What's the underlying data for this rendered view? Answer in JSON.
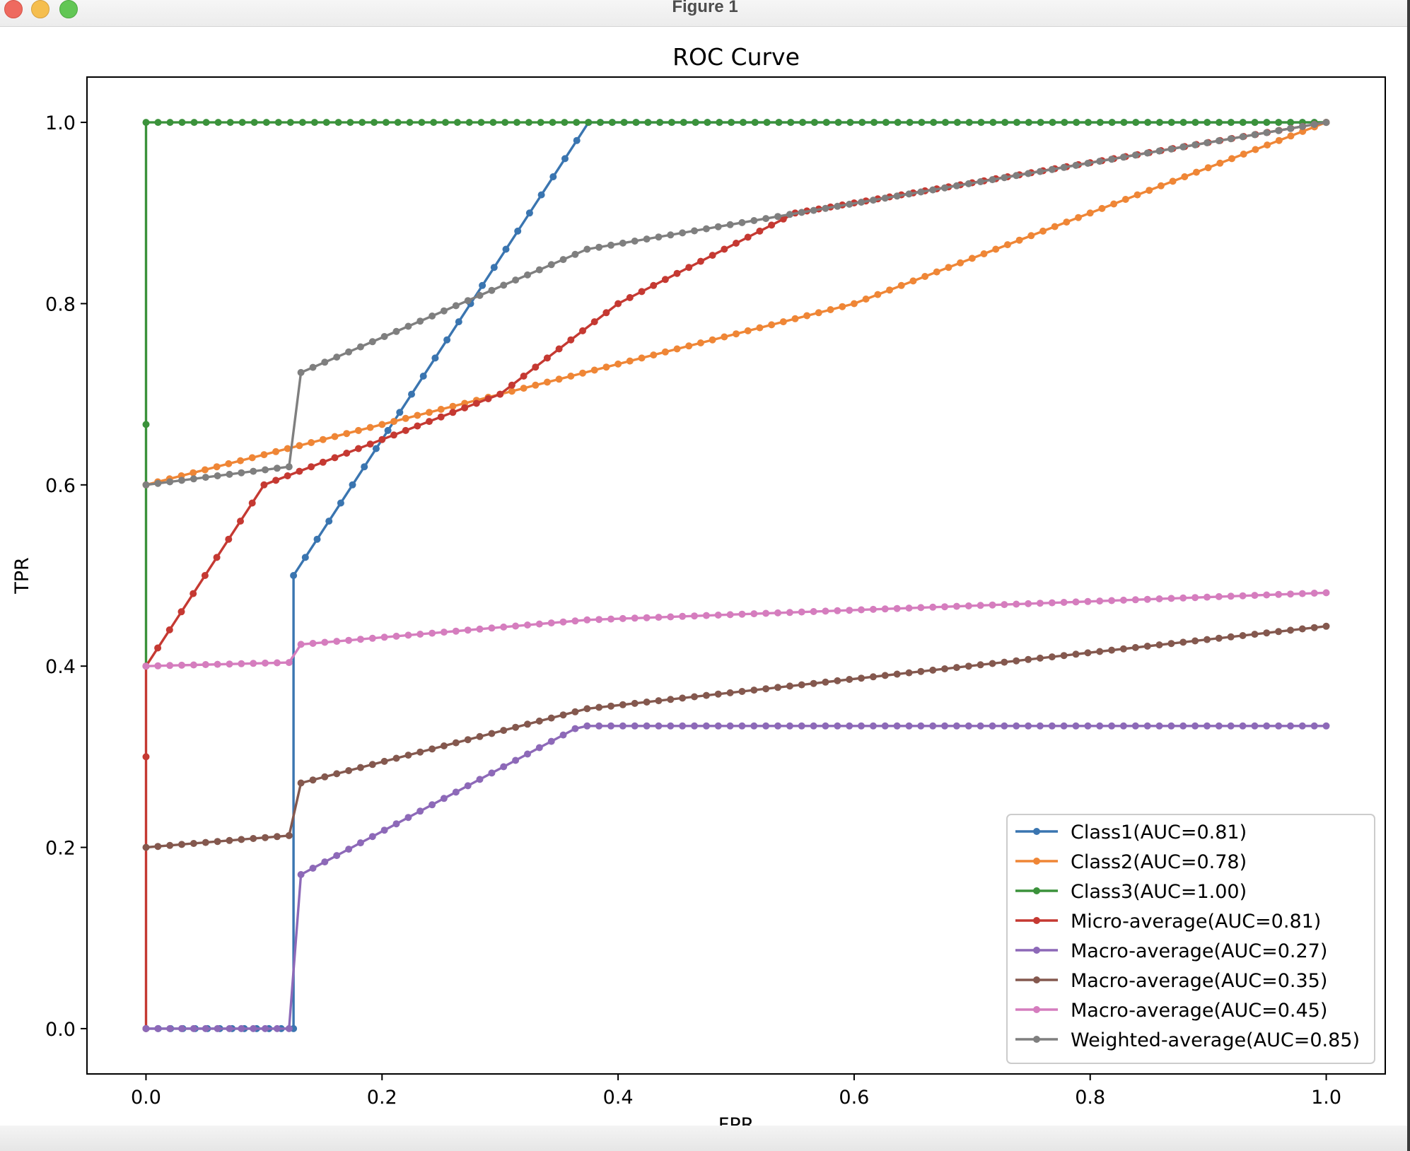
{
  "window": {
    "title": "Figure 1"
  },
  "chart_data": {
    "type": "line",
    "title": "ROC Curve",
    "xlabel": "FPR",
    "ylabel": "TPR",
    "xlim": [
      -0.05,
      1.05
    ],
    "ylim": [
      -0.05,
      1.05
    ],
    "xticks": [
      0.0,
      0.2,
      0.4,
      0.6,
      0.8,
      1.0
    ],
    "yticks": [
      0.0,
      0.2,
      0.4,
      0.6,
      0.8,
      1.0
    ],
    "xtick_labels": [
      "0.0",
      "0.2",
      "0.4",
      "0.6",
      "0.8",
      "1.0"
    ],
    "ytick_labels": [
      "0.0",
      "0.2",
      "0.4",
      "0.6",
      "0.8",
      "1.0"
    ],
    "grid": false,
    "legend_position": "lower-right",
    "series": [
      {
        "name": "Class1(AUC=0.81)",
        "color": "#3a75b0",
        "x": [
          0.0,
          0.125,
          0.125,
          0.375,
          1.0
        ],
        "y": [
          0.0,
          0.0,
          0.5,
          1.0,
          1.0
        ]
      },
      {
        "name": "Class2(AUC=0.78)",
        "color": "#ef8636",
        "x": [
          0.0,
          0.3,
          0.6,
          1.0
        ],
        "y": [
          0.6,
          0.7,
          0.8,
          1.0
        ]
      },
      {
        "name": "Class3(AUC=1.00)",
        "color": "#3b923b",
        "x": [
          0.0,
          0.0,
          0.0,
          0.142857,
          1.0
        ],
        "y": [
          0.4,
          0.666667,
          1.0,
          1.0,
          1.0
        ]
      },
      {
        "name": "Micro-average(AUC=0.81)",
        "color": "#c53932",
        "x": [
          0.0,
          0.0,
          0.0,
          0.1,
          0.3,
          0.4,
          0.55,
          1.0
        ],
        "y": [
          0.0,
          0.3,
          0.4,
          0.6,
          0.7,
          0.8,
          0.9,
          1.0
        ]
      },
      {
        "name": "Macro-average(AUC=0.27)",
        "color": "#8d69b8",
        "x": [
          0.0,
          0.121212,
          0.131313,
          0.141414,
          0.151515,
          0.161616,
          0.171717,
          0.181818,
          0.191919,
          0.20202,
          0.212121,
          0.222222,
          0.232323,
          0.242424,
          0.252525,
          0.262626,
          0.272727,
          0.282828,
          0.292929,
          0.30303,
          0.313131,
          0.323232,
          0.333333,
          0.343434,
          0.353535,
          0.363636,
          0.373737,
          1.0
        ],
        "y": [
          0.0,
          0.0,
          0.17,
          0.177,
          0.184,
          0.191,
          0.198,
          0.205,
          0.212,
          0.219,
          0.226,
          0.233,
          0.24,
          0.247,
          0.254,
          0.261,
          0.268,
          0.275,
          0.282,
          0.289,
          0.296,
          0.303,
          0.31,
          0.317,
          0.324,
          0.331,
          0.334,
          0.334
        ]
      },
      {
        "name": "Macro-average(AUC=0.35)",
        "color": "#84584e",
        "x": [
          0.0,
          0.121212,
          0.131313,
          0.373737,
          1.0
        ],
        "y": [
          0.2,
          0.213,
          0.271,
          0.353,
          0.444
        ]
      },
      {
        "name": "Macro-average(AUC=0.45)",
        "color": "#d57dbe",
        "x": [
          0.0,
          0.121212,
          0.131313,
          0.373737,
          1.0
        ],
        "y": [
          0.4,
          0.404,
          0.424,
          0.451,
          0.481
        ]
      },
      {
        "name": "Weighted-average(AUC=0.85)",
        "color": "#7f7f7f",
        "x": [
          0.0,
          0.121212,
          0.131313,
          0.373737,
          1.0
        ],
        "y": [
          0.6,
          0.62,
          0.724,
          0.86,
          1.0
        ]
      }
    ]
  }
}
